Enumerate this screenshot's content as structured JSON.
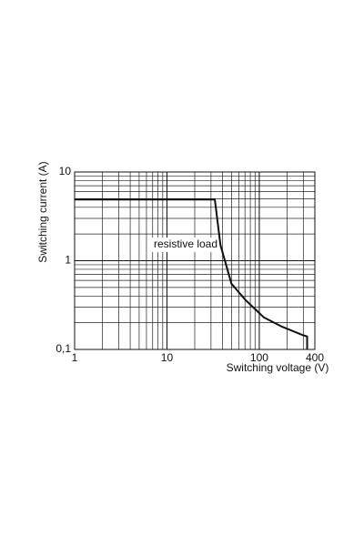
{
  "chart_data": {
    "type": "line",
    "x_label": "Switching voltage (V)",
    "y_label": "Switching current (A)",
    "annotation": "resistive load",
    "x": [
      1,
      33,
      38,
      50,
      71,
      112,
      177,
      297,
      330,
      330
    ],
    "values": [
      4.9,
      4.9,
      1.5,
      0.55,
      0.36,
      0.23,
      0.18,
      0.145,
      0.14,
      0.1
    ],
    "color": "#111111",
    "xscale": "log",
    "yscale": "log",
    "grid": true,
    "xlim": [
      1,
      400
    ],
    "ylim": [
      0.1,
      10
    ],
    "xticks": [
      1,
      10,
      100,
      400
    ],
    "yticks": [
      {
        "value": 0.1,
        "label": "0,1"
      },
      1,
      10
    ]
  }
}
